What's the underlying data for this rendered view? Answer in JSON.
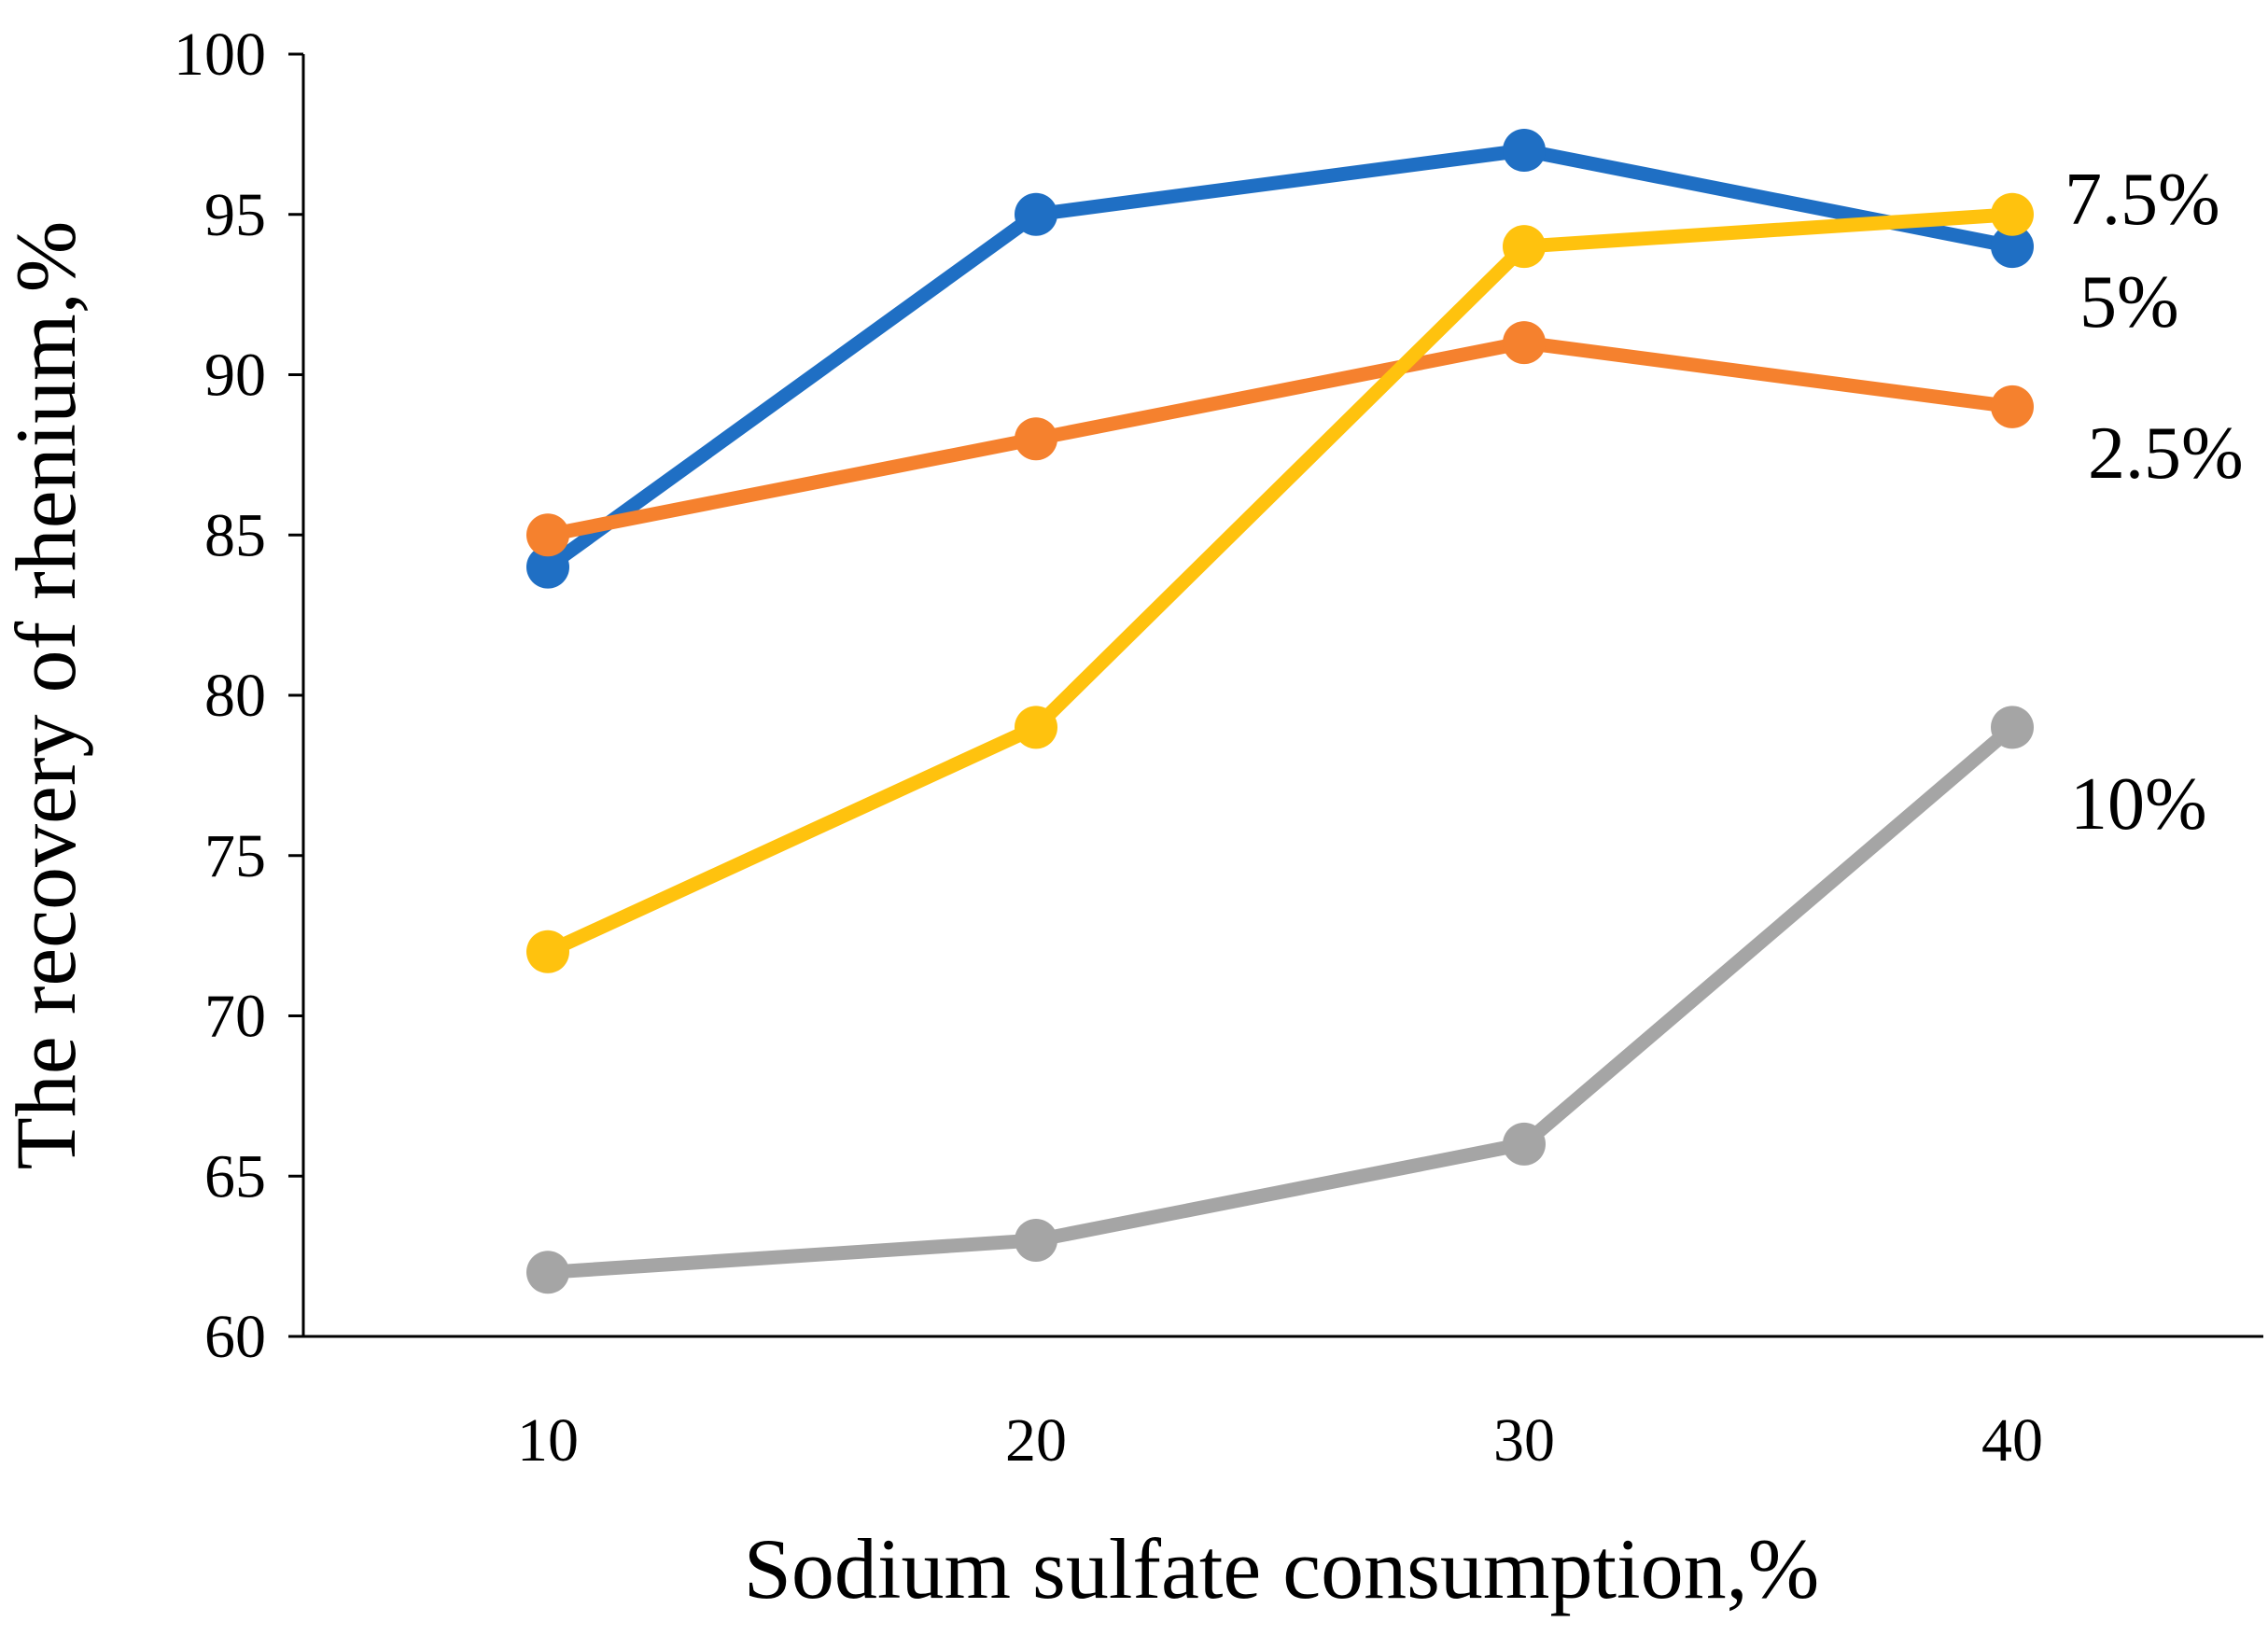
{
  "chart_data": {
    "type": "line",
    "title": "",
    "xlabel": "Sodium sulfate consumption,%",
    "ylabel": "The recovery of rhenium,%",
    "x": [
      10,
      20,
      30,
      40
    ],
    "x_tick_labels": [
      "10",
      "20",
      "30",
      "40"
    ],
    "ylim": [
      60,
      100
    ],
    "y_ticks": [
      60,
      65,
      70,
      75,
      80,
      85,
      90,
      95,
      100
    ],
    "y_tick_labels": [
      "60",
      "65",
      "70",
      "75",
      "80",
      "85",
      "90",
      "95",
      "100"
    ],
    "grid": false,
    "legend": "none (series labelled directly at right end)",
    "series": [
      {
        "name": "5%",
        "color": "#1f6fc4",
        "values": [
          84,
          95,
          97,
          94
        ]
      },
      {
        "name": "2.5%",
        "color": "#f5812e",
        "values": [
          85,
          88,
          91,
          89
        ]
      },
      {
        "name": "7.5%",
        "color": "#ffc20e",
        "values": [
          72,
          79,
          94,
          95
        ]
      },
      {
        "name": "10%",
        "color": "#a5a5a5",
        "values": [
          62,
          63,
          66,
          79
        ]
      }
    ],
    "annotations": [
      "7.5%",
      "5%",
      "2.5%",
      "10%"
    ]
  }
}
